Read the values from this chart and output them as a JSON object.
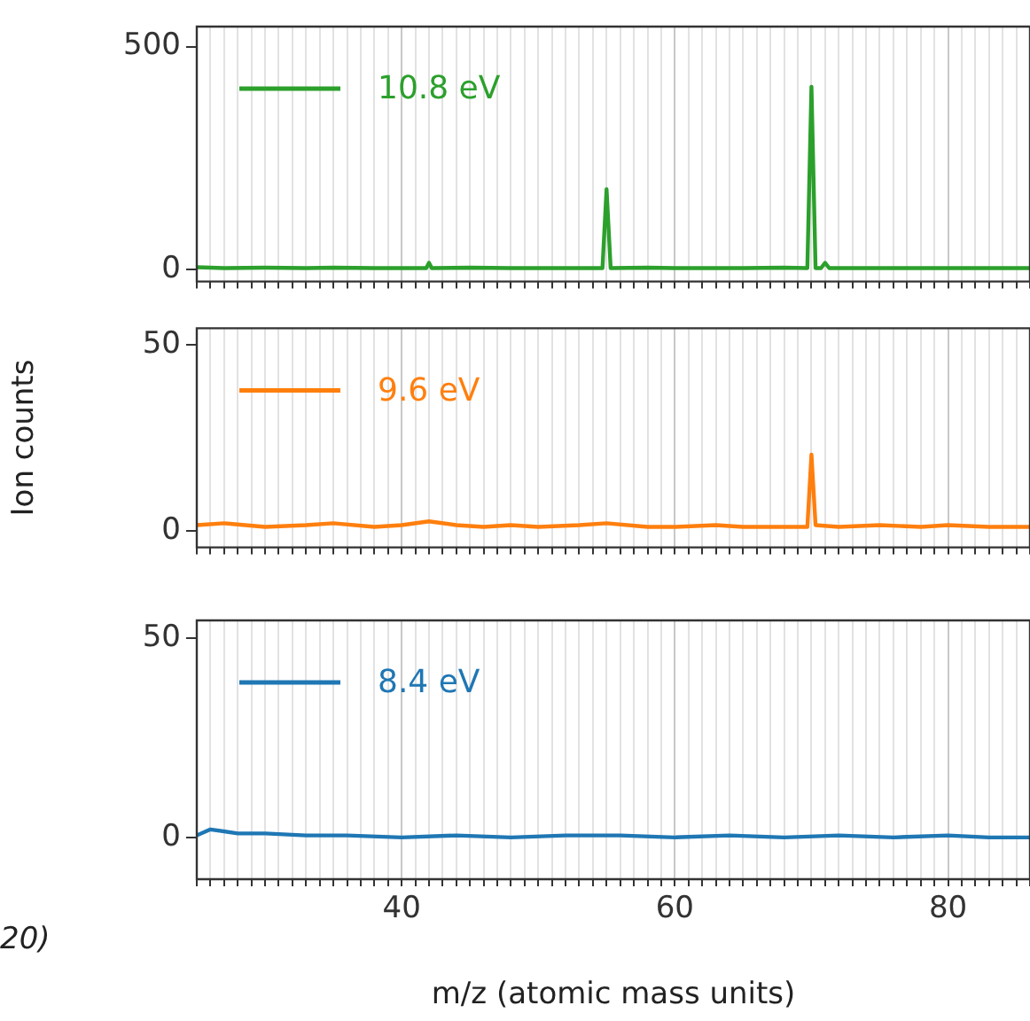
{
  "chart_data": [
    {
      "type": "line",
      "x": [
        25,
        27,
        30,
        33,
        35,
        38,
        40,
        41.8,
        42,
        42.2,
        45,
        48,
        50,
        52,
        54.7,
        55,
        55.3,
        58,
        60,
        63,
        65,
        68,
        69.7,
        70,
        70.3,
        70.7,
        71,
        71.3,
        74,
        77,
        80,
        83,
        86
      ],
      "series": [
        {
          "name": "10.8 eV",
          "color": "#2ca02c",
          "values": [
            5,
            3,
            4,
            3,
            4,
            3,
            3,
            3,
            15,
            3,
            4,
            3,
            3,
            3,
            3,
            180,
            3,
            4,
            3,
            3,
            3,
            4,
            3,
            410,
            3,
            3,
            15,
            3,
            3,
            3,
            3,
            3,
            3
          ]
        }
      ],
      "xlim": [
        25,
        86
      ],
      "ylim": [
        -27,
        545
      ],
      "yticks": [
        0,
        500
      ],
      "xticks": [
        {
          "value": 25,
          "label": null
        },
        {
          "value": 26,
          "label": null
        },
        {
          "value": 27,
          "label": null
        },
        {
          "value": 28,
          "label": null
        },
        {
          "value": 29,
          "label": null
        },
        {
          "value": 30,
          "label": null
        },
        {
          "value": 31,
          "label": null
        },
        {
          "value": 32,
          "label": null
        },
        {
          "value": 33,
          "label": null
        },
        {
          "value": 34,
          "label": null
        },
        {
          "value": 35,
          "label": null
        },
        {
          "value": 36,
          "label": null
        },
        {
          "value": 37,
          "label": null
        },
        {
          "value": 38,
          "label": null
        },
        {
          "value": 39,
          "label": null
        },
        40,
        {
          "value": 41,
          "label": null
        },
        {
          "value": 42,
          "label": null
        },
        {
          "value": 43,
          "label": null
        },
        {
          "value": 44,
          "label": null
        },
        {
          "value": 45,
          "label": null
        },
        {
          "value": 46,
          "label": null
        },
        {
          "value": 47,
          "label": null
        },
        {
          "value": 48,
          "label": null
        },
        {
          "value": 49,
          "label": null
        },
        {
          "value": 50,
          "label": null
        },
        {
          "value": 51,
          "label": null
        },
        {
          "value": 52,
          "label": null
        },
        {
          "value": 53,
          "label": null
        },
        {
          "value": 54,
          "label": null
        },
        {
          "value": 55,
          "label": null
        },
        {
          "value": 56,
          "label": null
        },
        {
          "value": 57,
          "label": null
        },
        {
          "value": 58,
          "label": null
        },
        {
          "value": 59,
          "label": null
        },
        60,
        {
          "value": 61,
          "label": null
        },
        {
          "value": 62,
          "label": null
        },
        {
          "value": 63,
          "label": null
        },
        {
          "value": 64,
          "label": null
        },
        {
          "value": 65,
          "label": null
        },
        {
          "value": 66,
          "label": null
        },
        {
          "value": 67,
          "label": null
        },
        {
          "value": 68,
          "label": null
        },
        {
          "value": 69,
          "label": null
        },
        {
          "value": 70,
          "label": null
        },
        {
          "value": 71,
          "label": null
        },
        {
          "value": 72,
          "label": null
        },
        {
          "value": 73,
          "label": null
        },
        {
          "value": 74,
          "label": null
        },
        {
          "value": 75,
          "label": null
        },
        {
          "value": 76,
          "label": null
        },
        {
          "value": 77,
          "label": null
        },
        {
          "value": 78,
          "label": null
        },
        {
          "value": 79,
          "label": null
        },
        80,
        {
          "value": 81,
          "label": null
        },
        {
          "value": 82,
          "label": null
        },
        {
          "value": 83,
          "label": null
        },
        {
          "value": 84,
          "label": null
        },
        {
          "value": 85,
          "label": null
        },
        {
          "value": 86,
          "label": null
        }
      ],
      "grid": "x",
      "legend": "top left",
      "tick_labels": "y"
    },
    {
      "type": "line",
      "x": [
        25,
        27,
        30,
        33,
        35,
        38,
        40,
        42,
        44,
        46,
        48,
        50,
        53,
        55,
        58,
        60,
        63,
        65,
        68,
        69.7,
        70,
        70.3,
        72,
        75,
        78,
        80,
        83,
        86
      ],
      "series": [
        {
          "name": "9.6 eV",
          "color": "#ff7f0e",
          "values": [
            1.5,
            2,
            1,
            1.5,
            2,
            1,
            1.5,
            2.5,
            1.5,
            1,
            1.5,
            1,
            1.5,
            2,
            1,
            1,
            1.5,
            1,
            1,
            1,
            20.5,
            1.5,
            1,
            1.5,
            1,
            1.5,
            1,
            1
          ]
        }
      ],
      "xlim": [
        25,
        86
      ],
      "ylim": [
        -4.5,
        54.5
      ],
      "yticks": [
        0,
        50
      ],
      "ylabel": "Ion counts",
      "xticks": [
        {
          "value": 25,
          "label": null
        },
        {
          "value": 26,
          "label": null
        },
        {
          "value": 27,
          "label": null
        },
        {
          "value": 28,
          "label": null
        },
        {
          "value": 29,
          "label": null
        },
        {
          "value": 30,
          "label": null
        },
        {
          "value": 31,
          "label": null
        },
        {
          "value": 32,
          "label": null
        },
        {
          "value": 33,
          "label": null
        },
        {
          "value": 34,
          "label": null
        },
        {
          "value": 35,
          "label": null
        },
        {
          "value": 36,
          "label": null
        },
        {
          "value": 37,
          "label": null
        },
        {
          "value": 38,
          "label": null
        },
        {
          "value": 39,
          "label": null
        },
        40,
        {
          "value": 41,
          "label": null
        },
        {
          "value": 42,
          "label": null
        },
        {
          "value": 43,
          "label": null
        },
        {
          "value": 44,
          "label": null
        },
        {
          "value": 45,
          "label": null
        },
        {
          "value": 46,
          "label": null
        },
        {
          "value": 47,
          "label": null
        },
        {
          "value": 48,
          "label": null
        },
        {
          "value": 49,
          "label": null
        },
        {
          "value": 50,
          "label": null
        },
        {
          "value": 51,
          "label": null
        },
        {
          "value": 52,
          "label": null
        },
        {
          "value": 53,
          "label": null
        },
        {
          "value": 54,
          "label": null
        },
        {
          "value": 55,
          "label": null
        },
        {
          "value": 56,
          "label": null
        },
        {
          "value": 57,
          "label": null
        },
        {
          "value": 58,
          "label": null
        },
        {
          "value": 59,
          "label": null
        },
        60,
        {
          "value": 61,
          "label": null
        },
        {
          "value": 62,
          "label": null
        },
        {
          "value": 63,
          "label": null
        },
        {
          "value": 64,
          "label": null
        },
        {
          "value": 65,
          "label": null
        },
        {
          "value": 66,
          "label": null
        },
        {
          "value": 67,
          "label": null
        },
        {
          "value": 68,
          "label": null
        },
        {
          "value": 69,
          "label": null
        },
        {
          "value": 70,
          "label": null
        },
        {
          "value": 71,
          "label": null
        },
        {
          "value": 72,
          "label": null
        },
        {
          "value": 73,
          "label": null
        },
        {
          "value": 74,
          "label": null
        },
        {
          "value": 75,
          "label": null
        },
        {
          "value": 76,
          "label": null
        },
        {
          "value": 77,
          "label": null
        },
        {
          "value": 78,
          "label": null
        },
        {
          "value": 79,
          "label": null
        },
        80,
        {
          "value": 81,
          "label": null
        },
        {
          "value": 82,
          "label": null
        },
        {
          "value": 83,
          "label": null
        },
        {
          "value": 84,
          "label": null
        },
        {
          "value": 85,
          "label": null
        },
        {
          "value": 86,
          "label": null
        }
      ],
      "grid": "x",
      "legend": "top left",
      "tick_labels": "y"
    },
    {
      "type": "line",
      "x": [
        25,
        26,
        28,
        30,
        33,
        36,
        40,
        44,
        48,
        52,
        56,
        60,
        64,
        68,
        72,
        76,
        80,
        83,
        86
      ],
      "series": [
        {
          "name": "8.4 eV",
          "color": "#1f77b4",
          "values": [
            0.5,
            2,
            1,
            1,
            0.5,
            0.5,
            0,
            0.5,
            0,
            0.5,
            0.5,
            0,
            0.5,
            0,
            0.5,
            0,
            0.5,
            0,
            0
          ]
        }
      ],
      "xlim": [
        25,
        86
      ],
      "ylim": [
        -10.5,
        54.5
      ],
      "yticks": [
        0,
        50
      ],
      "xlabel": "m/z (atomic mass units)",
      "annotations": [
        "20)"
      ],
      "xticks": [
        {
          "value": 25,
          "label": null
        },
        {
          "value": 26,
          "label": null
        },
        {
          "value": 27,
          "label": null
        },
        {
          "value": 28,
          "label": null
        },
        {
          "value": 29,
          "label": null
        },
        {
          "value": 30,
          "label": null
        },
        {
          "value": 31,
          "label": null
        },
        {
          "value": 32,
          "label": null
        },
        {
          "value": 33,
          "label": null
        },
        {
          "value": 34,
          "label": null
        },
        {
          "value": 35,
          "label": null
        },
        {
          "value": 36,
          "label": null
        },
        {
          "value": 37,
          "label": null
        },
        {
          "value": 38,
          "label": null
        },
        {
          "value": 39,
          "label": null
        },
        40,
        {
          "value": 41,
          "label": null
        },
        {
          "value": 42,
          "label": null
        },
        {
          "value": 43,
          "label": null
        },
        {
          "value": 44,
          "label": null
        },
        {
          "value": 45,
          "label": null
        },
        {
          "value": 46,
          "label": null
        },
        {
          "value": 47,
          "label": null
        },
        {
          "value": 48,
          "label": null
        },
        {
          "value": 49,
          "label": null
        },
        {
          "value": 50,
          "label": null
        },
        {
          "value": 51,
          "label": null
        },
        {
          "value": 52,
          "label": null
        },
        {
          "value": 53,
          "label": null
        },
        {
          "value": 54,
          "label": null
        },
        {
          "value": 55,
          "label": null
        },
        {
          "value": 56,
          "label": null
        },
        {
          "value": 57,
          "label": null
        },
        {
          "value": 58,
          "label": null
        },
        {
          "value": 59,
          "label": null
        },
        60,
        {
          "value": 61,
          "label": null
        },
        {
          "value": 62,
          "label": null
        },
        {
          "value": 63,
          "label": null
        },
        {
          "value": 64,
          "label": null
        },
        {
          "value": 65,
          "label": null
        },
        {
          "value": 66,
          "label": null
        },
        {
          "value": 67,
          "label": null
        },
        {
          "value": 68,
          "label": null
        },
        {
          "value": 69,
          "label": null
        },
        {
          "value": 70,
          "label": null
        },
        {
          "value": 71,
          "label": null
        },
        {
          "value": 72,
          "label": null
        },
        {
          "value": 73,
          "label": null
        },
        {
          "value": 74,
          "label": null
        },
        {
          "value": 75,
          "label": null
        },
        {
          "value": 76,
          "label": null
        },
        {
          "value": 77,
          "label": null
        },
        {
          "value": 78,
          "label": null
        },
        {
          "value": 79,
          "label": null
        },
        80,
        {
          "value": 81,
          "label": null
        },
        {
          "value": 82,
          "label": null
        },
        {
          "value": 83,
          "label": null
        },
        {
          "value": 84,
          "label": null
        },
        {
          "value": 85,
          "label": null
        },
        {
          "value": 86,
          "label": null
        }
      ],
      "grid": "x",
      "legend": "top left"
    }
  ]
}
